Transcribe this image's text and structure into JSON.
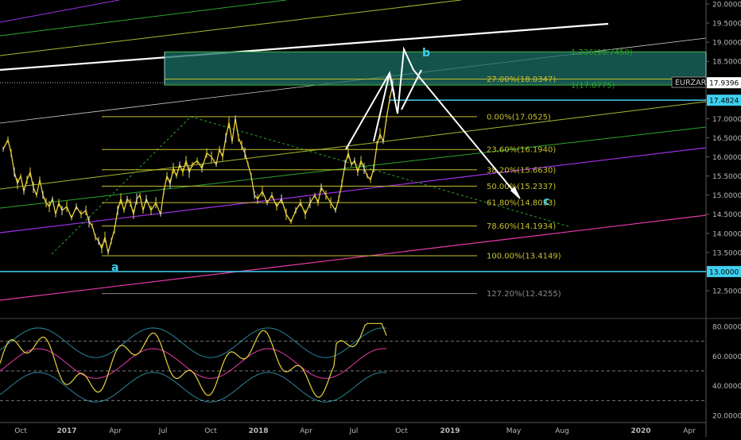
{
  "symbol": "EURZAR",
  "colors": {
    "background": "#000000",
    "fib": "#c7c02f",
    "price": "#e8d23a",
    "price_dn": "#e0e0e0",
    "cyan": "#3fd0f0",
    "magenta": "#e63aa8",
    "purple": "#a030e8",
    "green": "#2aa52a",
    "yellowgreen": "#a8b82a",
    "white": "#ffffff",
    "zone_fill": "#1b6e66",
    "axis_text": "#b8b8b8"
  },
  "chart_data": [
    {
      "type": "line",
      "title": "EURZAR",
      "ylim": [
        12.0,
        20.0
      ],
      "y_ticks": [
        "12.5000",
        "13.0000",
        "13.5000",
        "14.0000",
        "14.5000",
        "15.0000",
        "15.5000",
        "16.0000",
        "16.5000",
        "17.0000",
        "17.5000",
        "18.0000",
        "18.5000",
        "19.0000",
        "19.5000",
        "20.0000"
      ],
      "x_ticks": [
        "Oct",
        "2017",
        "Apr",
        "Jul",
        "Oct",
        "2018",
        "Apr",
        "Jul",
        "Oct",
        "2019",
        "May",
        "Aug",
        "2020",
        "Apr"
      ],
      "price_tags": [
        {
          "value": "17.9396",
          "kind": "last"
        },
        {
          "value": "17.4824",
          "kind": "cyan"
        },
        {
          "value": "13.0000",
          "kind": "cyan"
        }
      ],
      "fib_levels": [
        {
          "label": "1.236(18.7450)",
          "value": 18.745,
          "color": "#2aa52a"
        },
        {
          "label": "27.00%(18.0347)",
          "value": 18.0347,
          "color": "#c7c02f"
        },
        {
          "label": "1(17.8775)",
          "value": 17.8775,
          "color": "#2aa52a"
        },
        {
          "label": "0.00%(17.0525)",
          "value": 17.0525,
          "color": "#c7c02f"
        },
        {
          "label": "23.60%(16.1940)",
          "value": 16.194,
          "color": "#c7c02f"
        },
        {
          "label": "38.20%(15.6630)",
          "value": 15.663,
          "color": "#c7c02f"
        },
        {
          "label": "50.00%(15.2337)",
          "value": 15.2337,
          "color": "#c7c02f"
        },
        {
          "label": "61.80%(14.8033)",
          "value": 14.8033,
          "color": "#c7c02f"
        },
        {
          "label": "78.60%(14.1934)",
          "value": 14.1934,
          "color": "#c7c02f"
        },
        {
          "label": "100.00%(13.4149)",
          "value": 13.4149,
          "color": "#c7c02f"
        },
        {
          "label": "127.20%(12.4255)",
          "value": 12.4255,
          "color": "#888888"
        }
      ],
      "wave_labels": [
        "a",
        "b",
        "c"
      ],
      "series": [
        {
          "values": [
            [
              0,
              16.2
            ],
            [
              6,
              16.45
            ],
            [
              10,
              16.1
            ],
            [
              14,
              15.6
            ],
            [
              18,
              15.3
            ],
            [
              22,
              15.5
            ],
            [
              26,
              15.1
            ],
            [
              30,
              15.4
            ],
            [
              34,
              15.6
            ],
            [
              38,
              15.2
            ],
            [
              42,
              15.0
            ],
            [
              46,
              15.4
            ],
            [
              50,
              15.0
            ],
            [
              54,
              14.8
            ],
            [
              58,
              14.7
            ],
            [
              62,
              14.9
            ],
            [
              66,
              14.5
            ],
            [
              70,
              14.8
            ],
            [
              74,
              14.6
            ],
            [
              80,
              14.7
            ],
            [
              86,
              14.4
            ],
            [
              92,
              14.7
            ],
            [
              98,
              14.5
            ],
            [
              104,
              14.6
            ],
            [
              108,
              14.3
            ],
            [
              112,
              14.2
            ],
            [
              116,
              13.9
            ],
            [
              120,
              13.8
            ],
            [
              124,
              13.6
            ],
            [
              128,
              13.9
            ],
            [
              132,
              13.5
            ],
            [
              136,
              13.8
            ],
            [
              140,
              14.1
            ],
            [
              144,
              14.6
            ],
            [
              148,
              14.9
            ],
            [
              152,
              14.6
            ],
            [
              156,
              14.9
            ],
            [
              160,
              14.8
            ],
            [
              164,
              14.5
            ],
            [
              168,
              14.9
            ],
            [
              172,
              15.0
            ],
            [
              176,
              14.6
            ],
            [
              180,
              14.9
            ],
            [
              186,
              14.6
            ],
            [
              192,
              14.8
            ],
            [
              198,
              14.5
            ],
            [
              202,
              15.1
            ],
            [
              206,
              15.5
            ],
            [
              210,
              15.3
            ],
            [
              214,
              15.7
            ],
            [
              218,
              15.5
            ],
            [
              222,
              15.8
            ],
            [
              226,
              15.6
            ],
            [
              230,
              15.9
            ],
            [
              234,
              15.6
            ],
            [
              238,
              15.8
            ],
            [
              244,
              15.9
            ],
            [
              250,
              15.7
            ],
            [
              256,
              16.1
            ],
            [
              262,
              16.0
            ],
            [
              268,
              15.8
            ],
            [
              272,
              16.2
            ],
            [
              276,
              16.0
            ],
            [
              280,
              16.5
            ],
            [
              284,
              16.9
            ],
            [
              288,
              16.4
            ],
            [
              292,
              17.0
            ],
            [
              296,
              16.5
            ],
            [
              300,
              16.3
            ],
            [
              304,
              16.1
            ],
            [
              308,
              15.8
            ],
            [
              312,
              15.5
            ],
            [
              316,
              15.0
            ],
            [
              320,
              14.9
            ],
            [
              326,
              15.1
            ],
            [
              332,
              14.8
            ],
            [
              338,
              15.0
            ],
            [
              344,
              14.7
            ],
            [
              350,
              14.9
            ],
            [
              356,
              14.5
            ],
            [
              362,
              14.3
            ],
            [
              368,
              14.6
            ],
            [
              374,
              14.8
            ],
            [
              380,
              14.5
            ],
            [
              386,
              14.8
            ],
            [
              392,
              15.0
            ],
            [
              396,
              14.8
            ],
            [
              400,
              15.2
            ],
            [
              406,
              15.0
            ],
            [
              412,
              14.8
            ],
            [
              418,
              14.6
            ],
            [
              422,
              14.9
            ],
            [
              426,
              15.3
            ],
            [
              430,
              15.8
            ],
            [
              434,
              16.1
            ],
            [
              438,
              15.8
            ],
            [
              442,
              15.9
            ],
            [
              446,
              15.6
            ],
            [
              450,
              15.9
            ],
            [
              454,
              15.7
            ],
            [
              458,
              15.5
            ],
            [
              462,
              15.4
            ],
            [
              466,
              15.7
            ],
            [
              470,
              16.3
            ],
            [
              474,
              16.6
            ],
            [
              478,
              16.4
            ],
            [
              482,
              17.0
            ],
            [
              486,
              17.5
            ],
            [
              490,
              17.9
            ]
          ]
        }
      ]
    },
    {
      "type": "line",
      "ylim": [
        10,
        90
      ],
      "y_ticks": [
        "20.0000",
        "40.0000",
        "60.0000",
        "80.0000"
      ],
      "guide_levels": [
        70,
        50,
        30
      ]
    }
  ]
}
